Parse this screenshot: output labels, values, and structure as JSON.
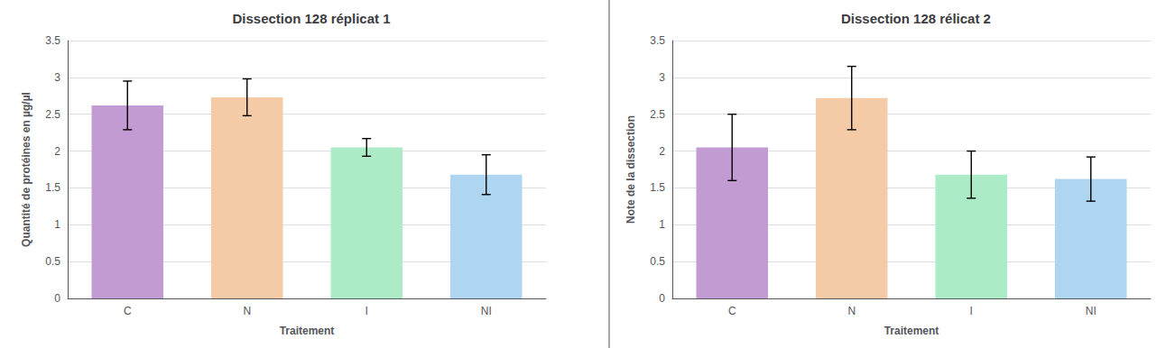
{
  "chart_data": [
    {
      "type": "bar",
      "title": "Dissection 128 réplicat 1",
      "xlabel": "Traitement",
      "ylabel": "Quantité de protéines en µg/µl",
      "categories": [
        "C",
        "N",
        "I",
        "NI"
      ],
      "values": [
        2.62,
        2.73,
        2.05,
        1.68
      ],
      "errors": [
        0.33,
        0.25,
        0.12,
        0.27
      ],
      "colors": [
        "#c39bd3",
        "#f5cba7",
        "#abebc6",
        "#aed6f1"
      ],
      "ylim": [
        0,
        3.5
      ],
      "yticks": [
        0,
        0.5,
        1,
        1.5,
        2,
        2.5,
        3,
        3.5
      ],
      "grid": true
    },
    {
      "type": "bar",
      "title": "Dissection 128 rélicat 2",
      "xlabel": "Traitement",
      "ylabel": "Note de la dissection",
      "categories": [
        "C",
        "N",
        "I",
        "NI"
      ],
      "values": [
        2.05,
        2.72,
        1.68,
        1.62
      ],
      "errors": [
        0.45,
        0.43,
        0.32,
        0.3
      ],
      "colors": [
        "#c39bd3",
        "#f5cba7",
        "#abebc6",
        "#aed6f1"
      ],
      "ylim": [
        0,
        3.5
      ],
      "yticks": [
        0,
        0.5,
        1,
        1.5,
        2,
        2.5,
        3,
        3.5
      ],
      "grid": true
    }
  ]
}
